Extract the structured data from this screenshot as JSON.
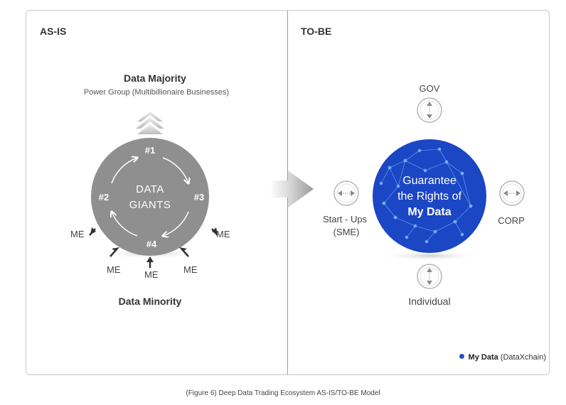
{
  "asis": {
    "title": "AS-IS",
    "majority_title": "Data Majority",
    "majority_subtitle": "Power Group (Multibillionaire Businesses)",
    "circle_label_line1": "DATA",
    "circle_label_line2": "GIANTS",
    "ranks": [
      "#1",
      "#2",
      "#3",
      "#4"
    ],
    "me_label": "ME",
    "minority_title": "Data Minority"
  },
  "tobe": {
    "title": "TO-BE",
    "gov": "GOV",
    "startups_line1": "Start - Ups",
    "startups_line2": "(SME)",
    "corp": "CORP",
    "individual": "Individual",
    "core_line1": "Guarantee",
    "core_line2": "the Rights of",
    "core_line3": "My Data"
  },
  "legend": {
    "label_bold": "My Data",
    "label_rest": "(DataXchain)",
    "color": "#1f4fc7"
  },
  "caption": "(Figure 6) Deep Data Trading Ecosystem AS-IS/TO-BE Model",
  "colors": {
    "giants": "#8f8f8f",
    "core": "#1b46c4",
    "border": "#c9c9c9"
  }
}
